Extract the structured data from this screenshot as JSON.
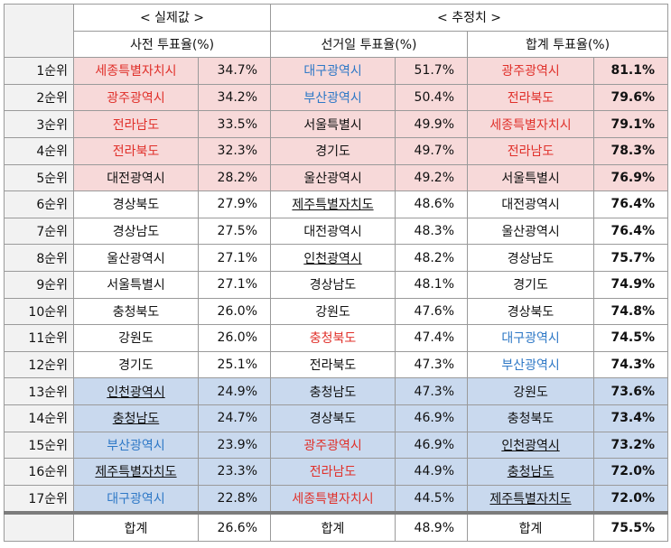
{
  "header": {
    "group_actual": "< 실제값 >",
    "group_estimate": "< 추정치 >",
    "col_pre": "사전 투표율(%)",
    "col_eday": "선거일 투표율(%)",
    "col_total": "합계 투표율(%)"
  },
  "colors": {
    "red_text": "#e0302a",
    "blue_text": "#2e78c6",
    "top5_bg": "#f7d9d9",
    "bottom5_bg": "#c9d9ee"
  },
  "rows": [
    {
      "rank": "1순위",
      "pre_region": "세종특별자치시",
      "pre_pct": "34.7%",
      "eday_region": "대구광역시",
      "eday_pct": "51.7%",
      "tot_region": "광주광역시",
      "tot_pct": "81.1%"
    },
    {
      "rank": "2순위",
      "pre_region": "광주광역시",
      "pre_pct": "34.2%",
      "eday_region": "부산광역시",
      "eday_pct": "50.4%",
      "tot_region": "전라북도",
      "tot_pct": "79.6%"
    },
    {
      "rank": "3순위",
      "pre_region": "전라남도",
      "pre_pct": "33.5%",
      "eday_region": "서울특별시",
      "eday_pct": "49.9%",
      "tot_region": "세종특별자치시",
      "tot_pct": "79.1%"
    },
    {
      "rank": "4순위",
      "pre_region": "전라북도",
      "pre_pct": "32.3%",
      "eday_region": "경기도",
      "eday_pct": "49.7%",
      "tot_region": "전라남도",
      "tot_pct": "78.3%"
    },
    {
      "rank": "5순위",
      "pre_region": "대전광역시",
      "pre_pct": "28.2%",
      "eday_region": "울산광역시",
      "eday_pct": "49.2%",
      "tot_region": "서울특별시",
      "tot_pct": "76.9%"
    },
    {
      "rank": "6순위",
      "pre_region": "경상북도",
      "pre_pct": "27.9%",
      "eday_region": "제주특별자치도",
      "eday_pct": "48.6%",
      "tot_region": "대전광역시",
      "tot_pct": "76.4%"
    },
    {
      "rank": "7순위",
      "pre_region": "경상남도",
      "pre_pct": "27.5%",
      "eday_region": "대전광역시",
      "eday_pct": "48.3%",
      "tot_region": "울산광역시",
      "tot_pct": "76.4%"
    },
    {
      "rank": "8순위",
      "pre_region": "울산광역시",
      "pre_pct": "27.1%",
      "eday_region": "인천광역시",
      "eday_pct": "48.2%",
      "tot_region": "경상남도",
      "tot_pct": "75.7%"
    },
    {
      "rank": "9순위",
      "pre_region": "서울특별시",
      "pre_pct": "27.1%",
      "eday_region": "경상남도",
      "eday_pct": "48.1%",
      "tot_region": "경기도",
      "tot_pct": "74.9%"
    },
    {
      "rank": "10순위",
      "pre_region": "충청북도",
      "pre_pct": "26.0%",
      "eday_region": "강원도",
      "eday_pct": "47.6%",
      "tot_region": "경상북도",
      "tot_pct": "74.8%"
    },
    {
      "rank": "11순위",
      "pre_region": "강원도",
      "pre_pct": "26.0%",
      "eday_region": "충청북도",
      "eday_pct": "47.4%",
      "tot_region": "대구광역시",
      "tot_pct": "74.5%"
    },
    {
      "rank": "12순위",
      "pre_region": "경기도",
      "pre_pct": "25.1%",
      "eday_region": "전라북도",
      "eday_pct": "47.3%",
      "tot_region": "부산광역시",
      "tot_pct": "74.3%"
    },
    {
      "rank": "13순위",
      "pre_region": "인천광역시",
      "pre_pct": "24.9%",
      "eday_region": "충청남도",
      "eday_pct": "47.3%",
      "tot_region": "강원도",
      "tot_pct": "73.6%"
    },
    {
      "rank": "14순위",
      "pre_region": "충청남도",
      "pre_pct": "24.7%",
      "eday_region": "경상북도",
      "eday_pct": "46.9%",
      "tot_region": "충청북도",
      "tot_pct": "73.4%"
    },
    {
      "rank": "15순위",
      "pre_region": "부산광역시",
      "pre_pct": "23.9%",
      "eday_region": "광주광역시",
      "eday_pct": "46.9%",
      "tot_region": "인천광역시",
      "tot_pct": "73.2%"
    },
    {
      "rank": "16순위",
      "pre_region": "제주특별자치도",
      "pre_pct": "23.3%",
      "eday_region": "전라남도",
      "eday_pct": "44.9%",
      "tot_region": "충청남도",
      "tot_pct": "72.0%"
    },
    {
      "rank": "17순위",
      "pre_region": "대구광역시",
      "pre_pct": "22.8%",
      "eday_region": "세종특별자치시",
      "eday_pct": "44.5%",
      "tot_region": "제주특별자치도",
      "tot_pct": "72.0%"
    }
  ],
  "total": {
    "pre_label": "합계",
    "pre_pct": "26.6%",
    "eday_label": "합계",
    "eday_pct": "48.9%",
    "tot_label": "합계",
    "tot_pct": "75.5%"
  }
}
